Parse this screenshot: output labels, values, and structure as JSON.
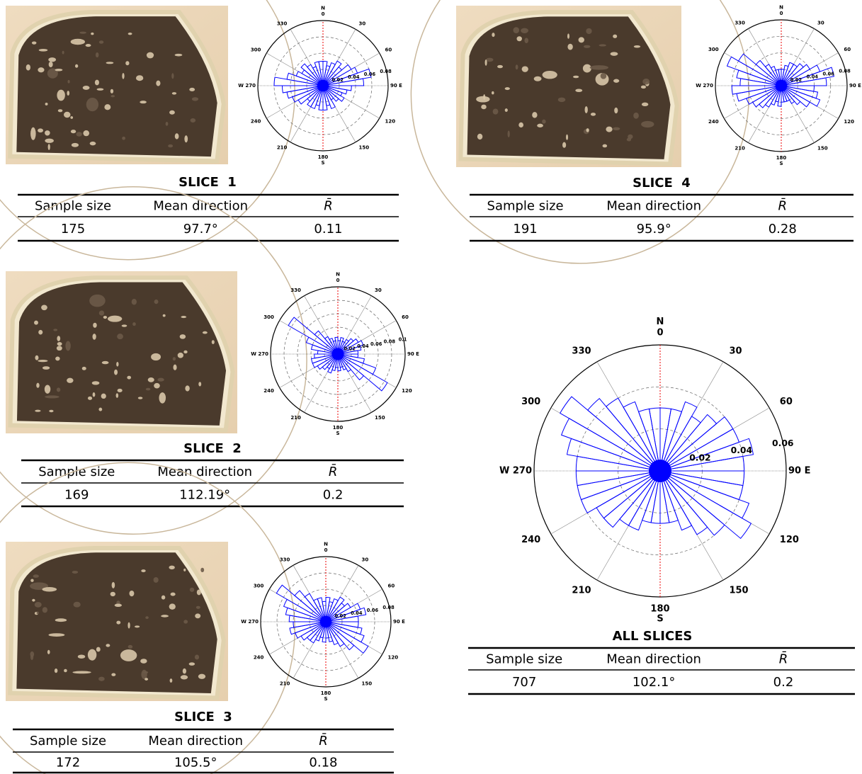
{
  "chart_data": [
    {
      "type": "rose",
      "north_label": "N",
      "south_label": "S",
      "xlim": [
        0,
        360
      ],
      "xticks": [
        0,
        30,
        60,
        {
          "value": 90,
          "label": "90 E"
        },
        120,
        150,
        180,
        210,
        240,
        {
          "value": 270,
          "label": "W 270"
        },
        300,
        330
      ],
      "ylim": [
        0,
        0.08
      ],
      "yticks": [
        0.02,
        0.04,
        0.06,
        0.08
      ],
      "color": "#0000ff",
      "x": [
        0,
        10,
        20,
        30,
        40,
        50,
        60,
        70,
        80,
        90,
        100,
        110,
        120,
        130,
        140,
        150,
        160,
        170,
        180,
        190,
        200,
        210,
        220,
        230,
        240,
        250,
        260,
        270,
        280,
        290,
        300,
        310,
        320,
        330,
        340,
        350
      ],
      "values": [
        0.03,
        0.025,
        0.03,
        0.035,
        0.03,
        0.04,
        0.045,
        0.06,
        0.05,
        0.035,
        0.03,
        0.025,
        0.03,
        0.025,
        0.02,
        0.03,
        0.025,
        0.03,
        0.03,
        0.025,
        0.03,
        0.03,
        0.025,
        0.035,
        0.04,
        0.045,
        0.05,
        0.06,
        0.045,
        0.035,
        0.03,
        0.035,
        0.03,
        0.025,
        0.03,
        0.03
      ]
    },
    {
      "type": "rose",
      "north_label": "N",
      "south_label": "S",
      "xlim": [
        0,
        360
      ],
      "xticks": [
        0,
        30,
        60,
        {
          "value": 90,
          "label": "90 E"
        },
        120,
        150,
        180,
        210,
        240,
        {
          "value": 270,
          "label": "W 270"
        },
        300,
        330
      ],
      "ylim": [
        0,
        0.1
      ],
      "yticks": [
        0.02,
        0.04,
        0.06,
        0.08,
        0.1
      ],
      "color": "#0000ff",
      "x": [
        0,
        10,
        20,
        30,
        40,
        50,
        60,
        70,
        80,
        90,
        100,
        110,
        120,
        130,
        140,
        150,
        160,
        170,
        180,
        190,
        200,
        210,
        220,
        230,
        240,
        250,
        260,
        270,
        280,
        290,
        300,
        310,
        320,
        330,
        340,
        350
      ],
      "values": [
        0.02,
        0.025,
        0.02,
        0.025,
        0.03,
        0.035,
        0.04,
        0.035,
        0.03,
        0.03,
        0.04,
        0.06,
        0.085,
        0.05,
        0.03,
        0.025,
        0.02,
        0.025,
        0.02,
        0.025,
        0.03,
        0.025,
        0.03,
        0.035,
        0.04,
        0.04,
        0.035,
        0.03,
        0.04,
        0.05,
        0.085,
        0.045,
        0.03,
        0.025,
        0.02,
        0.025
      ]
    },
    {
      "type": "rose",
      "north_label": "N",
      "south_label": "S",
      "xlim": [
        0,
        360
      ],
      "xticks": [
        0,
        30,
        60,
        {
          "value": 90,
          "label": "90 E"
        },
        120,
        150,
        180,
        210,
        240,
        {
          "value": 270,
          "label": "W 270"
        },
        300,
        330
      ],
      "ylim": [
        0,
        0.08
      ],
      "yticks": [
        0.02,
        0.04,
        0.06,
        0.08
      ],
      "color": "#0000ff",
      "x": [
        0,
        10,
        20,
        30,
        40,
        50,
        60,
        70,
        80,
        90,
        100,
        110,
        120,
        130,
        140,
        150,
        160,
        170,
        180,
        190,
        200,
        210,
        220,
        230,
        240,
        250,
        260,
        270,
        280,
        290,
        300,
        310,
        320,
        330,
        340,
        350
      ],
      "values": [
        0.03,
        0.025,
        0.03,
        0.035,
        0.03,
        0.035,
        0.045,
        0.05,
        0.04,
        0.04,
        0.045,
        0.05,
        0.06,
        0.045,
        0.035,
        0.03,
        0.025,
        0.02,
        0.025,
        0.02,
        0.025,
        0.03,
        0.03,
        0.035,
        0.04,
        0.045,
        0.04,
        0.045,
        0.05,
        0.055,
        0.07,
        0.05,
        0.04,
        0.03,
        0.03,
        0.025
      ]
    },
    {
      "type": "rose",
      "north_label": "N",
      "south_label": "S",
      "xlim": [
        0,
        360
      ],
      "xticks": [
        0,
        30,
        60,
        {
          "value": 90,
          "label": "90 E"
        },
        120,
        150,
        180,
        210,
        240,
        {
          "value": 270,
          "label": "W 270"
        },
        300,
        330
      ],
      "ylim": [
        0,
        0.08
      ],
      "yticks": [
        0.02,
        0.04,
        0.06,
        0.08
      ],
      "color": "#0000ff",
      "x": [
        0,
        10,
        20,
        30,
        40,
        50,
        60,
        70,
        80,
        90,
        100,
        110,
        120,
        130,
        140,
        150,
        160,
        170,
        180,
        190,
        200,
        210,
        220,
        230,
        240,
        250,
        260,
        270,
        280,
        290,
        300,
        310,
        320,
        330,
        340,
        350
      ],
      "values": [
        0.02,
        0.025,
        0.03,
        0.03,
        0.035,
        0.04,
        0.05,
        0.065,
        0.055,
        0.04,
        0.045,
        0.05,
        0.04,
        0.03,
        0.025,
        0.02,
        0.02,
        0.02,
        0.025,
        0.02,
        0.025,
        0.03,
        0.035,
        0.04,
        0.045,
        0.055,
        0.06,
        0.05,
        0.055,
        0.07,
        0.06,
        0.04,
        0.03,
        0.025,
        0.02,
        0.02
      ]
    },
    {
      "type": "rose",
      "north_label": "N",
      "south_label": "S",
      "xlim": [
        0,
        360
      ],
      "xticks": [
        0,
        30,
        60,
        {
          "value": 90,
          "label": "90 E"
        },
        120,
        150,
        180,
        210,
        240,
        {
          "value": 270,
          "label": "W 270"
        },
        300,
        330
      ],
      "ylim": [
        0,
        0.06
      ],
      "yticks": [
        0.02,
        0.04,
        0.06
      ],
      "color": "#0000ff",
      "x": [
        0,
        10,
        20,
        30,
        40,
        50,
        60,
        70,
        80,
        90,
        100,
        110,
        120,
        130,
        140,
        150,
        160,
        170,
        180,
        190,
        200,
        210,
        220,
        230,
        240,
        250,
        260,
        270,
        280,
        290,
        300,
        310,
        320,
        330,
        340,
        350
      ],
      "values": [
        0.03,
        0.03,
        0.035,
        0.03,
        0.035,
        0.04,
        0.04,
        0.045,
        0.04,
        0.04,
        0.04,
        0.045,
        0.05,
        0.04,
        0.035,
        0.03,
        0.025,
        0.025,
        0.025,
        0.025,
        0.03,
        0.03,
        0.035,
        0.035,
        0.04,
        0.04,
        0.04,
        0.04,
        0.045,
        0.05,
        0.055,
        0.045,
        0.04,
        0.035,
        0.03,
        0.03
      ]
    }
  ],
  "panels": [
    {
      "title": "SLICE  1",
      "table": {
        "headers": [
          "Sample size",
          "Mean direction",
          "R̄"
        ],
        "rows": [
          [
            "175",
            "97.7°",
            "0.11"
          ]
        ]
      }
    },
    {
      "title": "SLICE  2",
      "table": {
        "headers": [
          "Sample size",
          "Mean direction",
          "R̄"
        ],
        "rows": [
          [
            "169",
            "112.19°",
            "0.2"
          ]
        ]
      }
    },
    {
      "title": "SLICE  3",
      "table": {
        "headers": [
          "Sample size",
          "Mean direction",
          "R̄"
        ],
        "rows": [
          [
            "172",
            "105.5°",
            "0.18"
          ]
        ]
      }
    },
    {
      "title": "SLICE  4",
      "table": {
        "headers": [
          "Sample size",
          "Mean direction",
          "R̄"
        ],
        "rows": [
          [
            "191",
            "95.9°",
            "0.28"
          ]
        ]
      }
    },
    {
      "title": "ALL SLICES",
      "table": {
        "headers": [
          "Sample size",
          "Mean direction",
          "R̄"
        ],
        "rows": [
          [
            "707",
            "102.1°",
            "0.2"
          ]
        ]
      }
    }
  ]
}
